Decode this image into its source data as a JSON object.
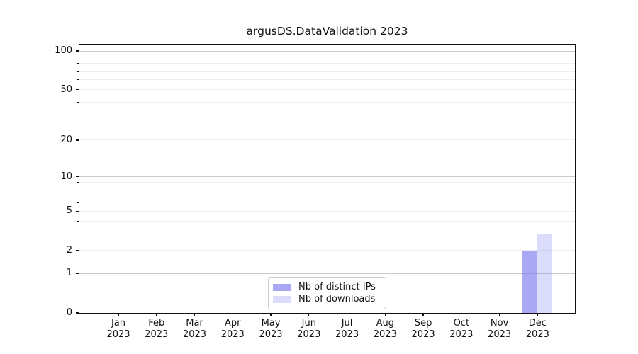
{
  "title": "argusDS.DataValidation 2023",
  "colors": {
    "bar_distinct_ips": "rgba(127,127,240,0.68)",
    "bar_downloads": "rgba(127,127,240,0.28)",
    "grid_major": "#c9c9c9",
    "grid_minor": "#eeeeee",
    "axis_spine": "#111111",
    "legend_border": "#cccccc"
  },
  "legend": {
    "items": [
      {
        "label": "Nb of distinct IPs"
      },
      {
        "label": "Nb of downloads"
      }
    ]
  },
  "chart_data": {
    "type": "bar",
    "title": "argusDS.DataValidation 2023",
    "categories": [
      "Jan 2023",
      "Feb 2023",
      "Mar 2023",
      "Apr 2023",
      "May 2023",
      "Jun 2023",
      "Jul 2023",
      "Aug 2023",
      "Sep 2023",
      "Oct 2023",
      "Nov 2023",
      "Dec 2023"
    ],
    "series": [
      {
        "name": "Nb of distinct IPs",
        "color": "rgba(127,127,240,0.68)",
        "values": [
          0,
          0,
          0,
          0,
          0,
          0,
          0,
          0,
          0,
          0,
          0,
          2
        ]
      },
      {
        "name": "Nb of downloads",
        "color": "rgba(127,127,240,0.28)",
        "values": [
          0,
          0,
          0,
          0,
          0,
          0,
          0,
          0,
          0,
          0,
          0,
          3
        ]
      }
    ],
    "xlabel": "",
    "ylabel": "",
    "yscale": "log1p",
    "ylim": [
      0,
      112
    ],
    "yticks_labeled": [
      0,
      1,
      2,
      5,
      10,
      20,
      50,
      100
    ],
    "ygrid_major": [
      1,
      10,
      100
    ],
    "ygrid_minor": [
      2,
      3,
      4,
      5,
      6,
      7,
      8,
      9,
      20,
      30,
      40,
      50,
      60,
      70,
      80,
      90
    ],
    "yticks_minor": [
      3,
      4,
      6,
      7,
      8,
      9,
      30,
      40,
      60,
      70,
      80,
      90
    ],
    "grid": "horizontal",
    "legend_position": "lower center"
  }
}
